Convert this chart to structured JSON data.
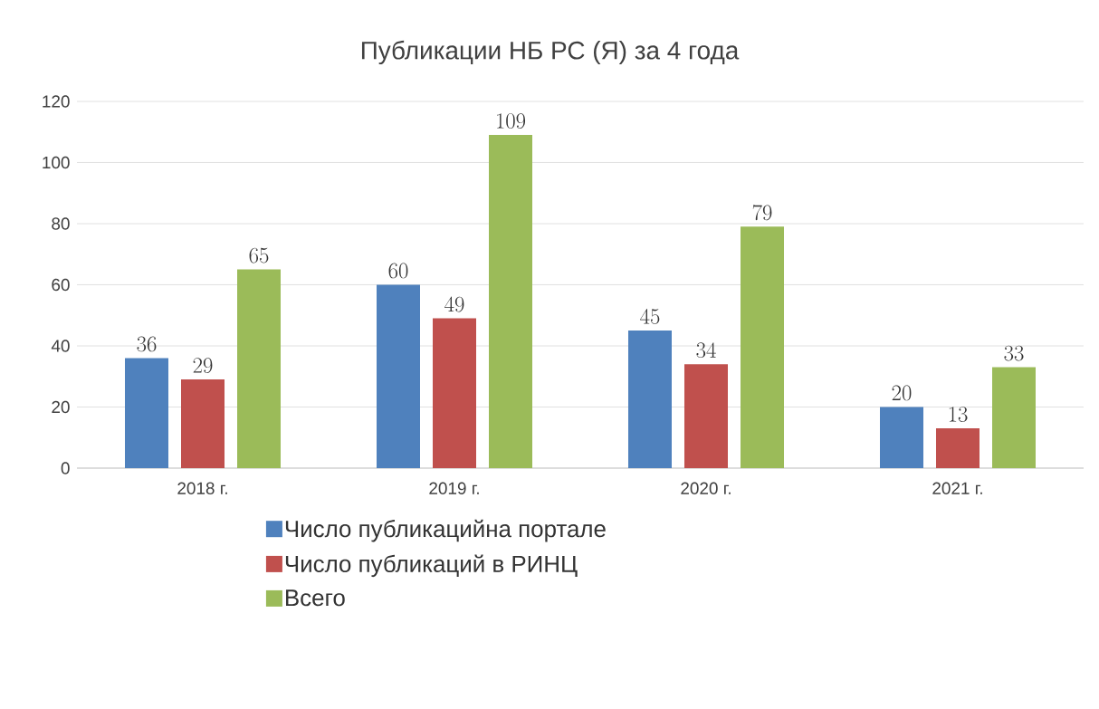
{
  "chart_data": {
    "type": "bar",
    "title": "Публикации НБ РС (Я) за 4 года",
    "categories": [
      "2018 г.",
      "2019 г.",
      "2020 г.",
      "2021 г."
    ],
    "series": [
      {
        "name": "Число публикацийна портале",
        "color": "#4f81bd",
        "values": [
          36,
          60,
          45,
          20
        ]
      },
      {
        "name": "Число публикаций в РИНЦ",
        "color": "#c0504d",
        "values": [
          29,
          49,
          34,
          13
        ]
      },
      {
        "name": "Всего",
        "color": "#9bbb59",
        "values": [
          65,
          109,
          79,
          33
        ]
      }
    ],
    "ylim": [
      0,
      120
    ],
    "yticks": [
      0,
      20,
      40,
      60,
      80,
      100,
      120
    ],
    "grid": "y",
    "legend": "bottom",
    "data_labels": true
  }
}
